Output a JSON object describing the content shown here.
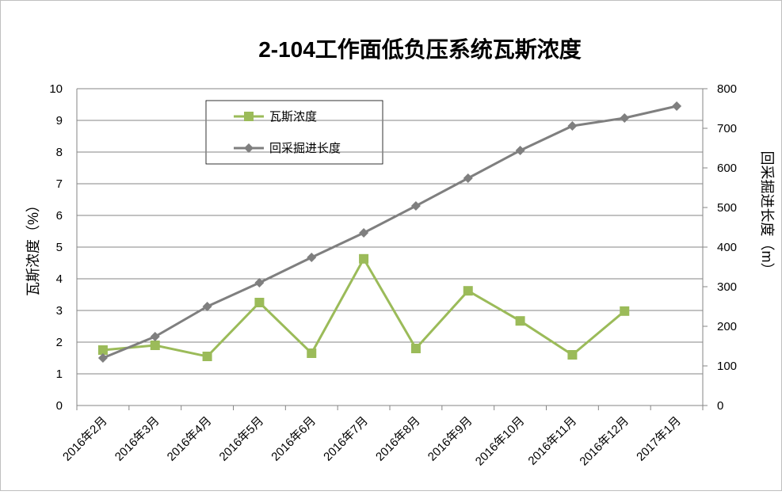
{
  "chart_data": {
    "type": "line",
    "title": "2-104工作面低负压系统瓦斯浓度",
    "y_label": "瓦斯浓度（%）",
    "y2_label": "回采掘进长度（m）",
    "categories": [
      "2016年2月",
      "2016年3月",
      "2016年4月",
      "2016年5月",
      "2016年6月",
      "2016年7月",
      "2016年8月",
      "2016年9月",
      "2016年10月",
      "2016年11月",
      "2016年12月",
      "2017年1月"
    ],
    "series": [
      {
        "name": "瓦斯浓度",
        "color": "#9bbb59",
        "marker": "square",
        "values": [
          1.75,
          1.9,
          1.55,
          3.25,
          1.65,
          4.63,
          1.8,
          3.62,
          2.67,
          1.6,
          2.98,
          null
        ]
      },
      {
        "name": "回采掘进长度",
        "color": "#7f7f7f",
        "marker": "diamond",
        "axis": "y2",
        "values": [
          120,
          174,
          250,
          310,
          374,
          436,
          504,
          574,
          644,
          706,
          726,
          756
        ]
      }
    ],
    "ylim": [
      0,
      10
    ],
    "yticks": [
      0,
      1,
      2,
      3,
      4,
      5,
      6,
      7,
      8,
      9,
      10
    ],
    "y2lim": [
      0,
      800
    ],
    "y2ticks": [
      0,
      100,
      200,
      300,
      400,
      500,
      600,
      700,
      800
    ],
    "grid": true,
    "legend": "top-left"
  }
}
